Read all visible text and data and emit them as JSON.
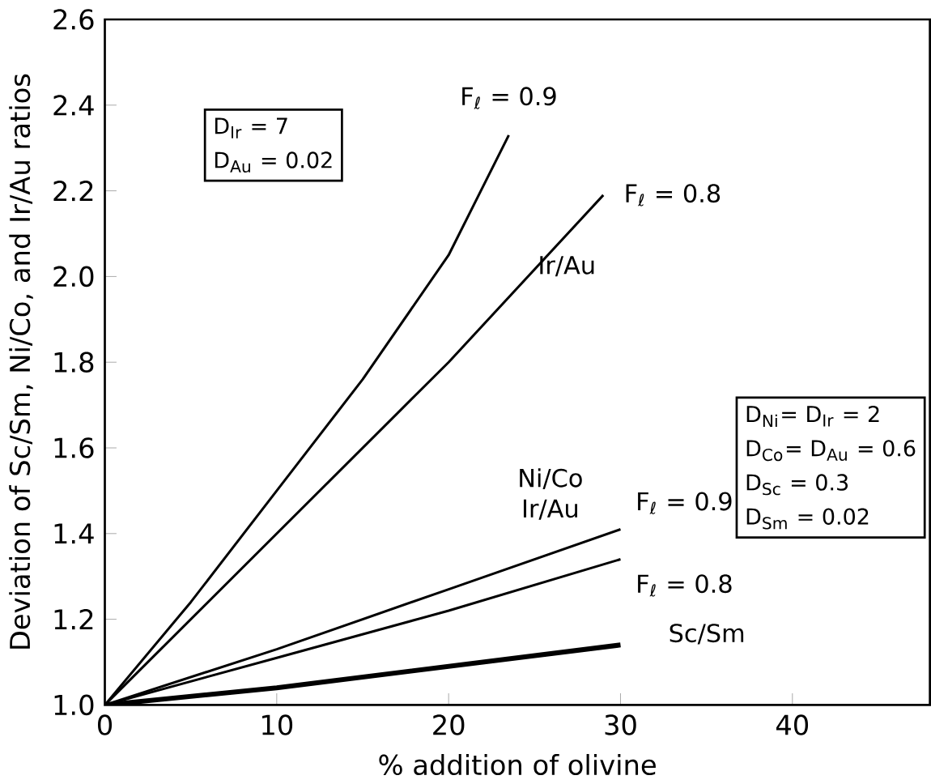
{
  "chart_data": {
    "type": "line",
    "xlabel": "% addition of olivine",
    "ylabel": "Deviation of Sc/Sm, Ni/Co, and Ir/Au ratios",
    "xlim": [
      0,
      48
    ],
    "xticks": [
      0,
      10,
      20,
      30,
      40
    ],
    "ylim": [
      1.0,
      2.6
    ],
    "yticks": [
      {
        "value": 1.0,
        "label": "1.0"
      },
      {
        "value": 1.2,
        "label": "1.2"
      },
      {
        "value": 1.4,
        "label": "1.4"
      },
      {
        "value": 1.6,
        "label": "1.6"
      },
      {
        "value": 1.8,
        "label": "1.8"
      },
      {
        "value": 2.0,
        "label": "2.0"
      },
      {
        "value": 2.2,
        "label": "2.2"
      },
      {
        "value": 2.4,
        "label": "2.4"
      },
      {
        "value": 2.6,
        "label": "2.6"
      }
    ],
    "grid": false,
    "marker": "none",
    "line_style": "solid",
    "series": [
      {
        "color": "#000000",
        "x": [
          0,
          5,
          10,
          15,
          20,
          23.5
        ],
        "values": [
          1.0,
          1.24,
          1.5,
          1.76,
          2.05,
          2.33
        ]
      },
      {
        "color": "#000000",
        "x": [
          0,
          10,
          20,
          29
        ],
        "values": [
          1.0,
          1.4,
          1.8,
          2.19
        ]
      },
      {
        "color": "#000000",
        "x": [
          0,
          10,
          20,
          30
        ],
        "values": [
          1.0,
          1.13,
          1.27,
          1.41
        ]
      },
      {
        "color": "#000000",
        "x": [
          0,
          10,
          20,
          30
        ],
        "values": [
          1.0,
          1.11,
          1.22,
          1.34
        ]
      },
      {
        "color": "#000000",
        "x": [
          0,
          10,
          20,
          30
        ],
        "values": [
          1.0,
          1.04,
          1.09,
          1.14
        ]
      }
    ],
    "annotations": [
      "D$_{Ir}$ = 7",
      "D$_{Au}$ = 0.02",
      "D$_{Ni}$= D$_{Ir}$ = 2",
      "D$_{Co}$= D$_{Au}$ = 0.6",
      "D$_{Sc}$ = 0.3",
      "D$_{Sm}$ = 0.02",
      "Ir/Au",
      "Ni/Co",
      "Ir/Au",
      {
        "text": "F$_{ℓ}$ = 0.9",
        "x": 23.5,
        "y": 2.33
      },
      {
        "text": "F$_{ℓ}$ = 0.8",
        "x": 29,
        "y": 2.19
      },
      {
        "text": "F$_{ℓ}$ = 0.9",
        "x": 30,
        "y": 1.41
      },
      {
        "text": "F$_{ℓ}$ = 0.8",
        "x": 30,
        "y": 1.34
      },
      {
        "text": "Sc/Sm",
        "x": 30,
        "y": 1.14
      }
    ]
  }
}
